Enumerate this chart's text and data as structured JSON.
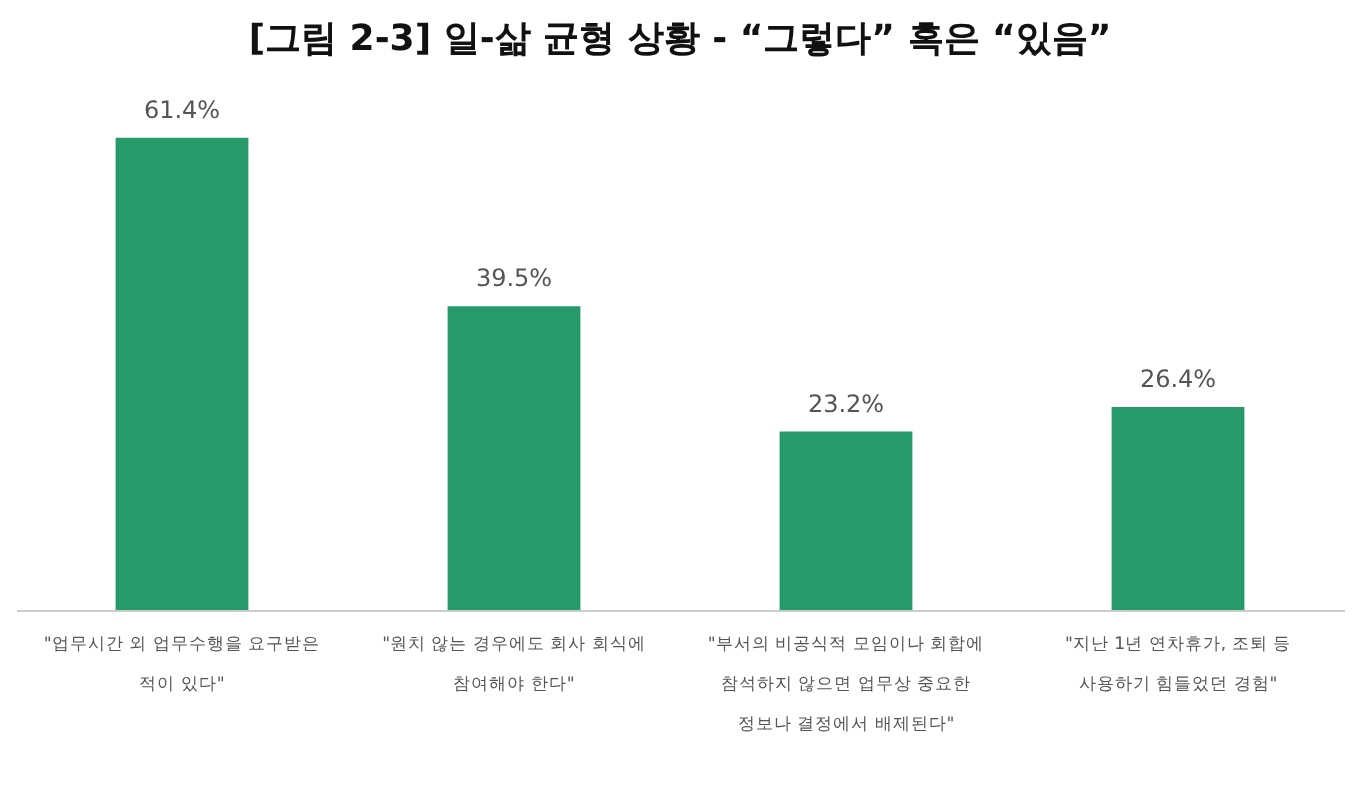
{
  "chart_data": {
    "type": "bar",
    "title": "[그림 2-3] 일-삶 균형 상황 - “그렇다” 혹은 “있음”",
    "categories": [
      "\"업무시간 외 업무수행을 요구받은\n적이 있다\"",
      "\"원치 않는 경우에도 회사 회식에\n참여해야 한다\"",
      "\"부서의 비공식적 모임이나 회합에\n참석하지 않으면 업무상 중요한\n정보나 결정에서 배제된다\"",
      "\"지난 1년 연차휴가, 조퇴 등\n사용하기 힘들었던 경험\""
    ],
    "values": [
      61.4,
      39.5,
      23.2,
      26.4
    ],
    "value_labels": [
      "61.4%",
      "39.5%",
      "23.2%",
      "26.4%"
    ],
    "color": "#269a6b"
  }
}
